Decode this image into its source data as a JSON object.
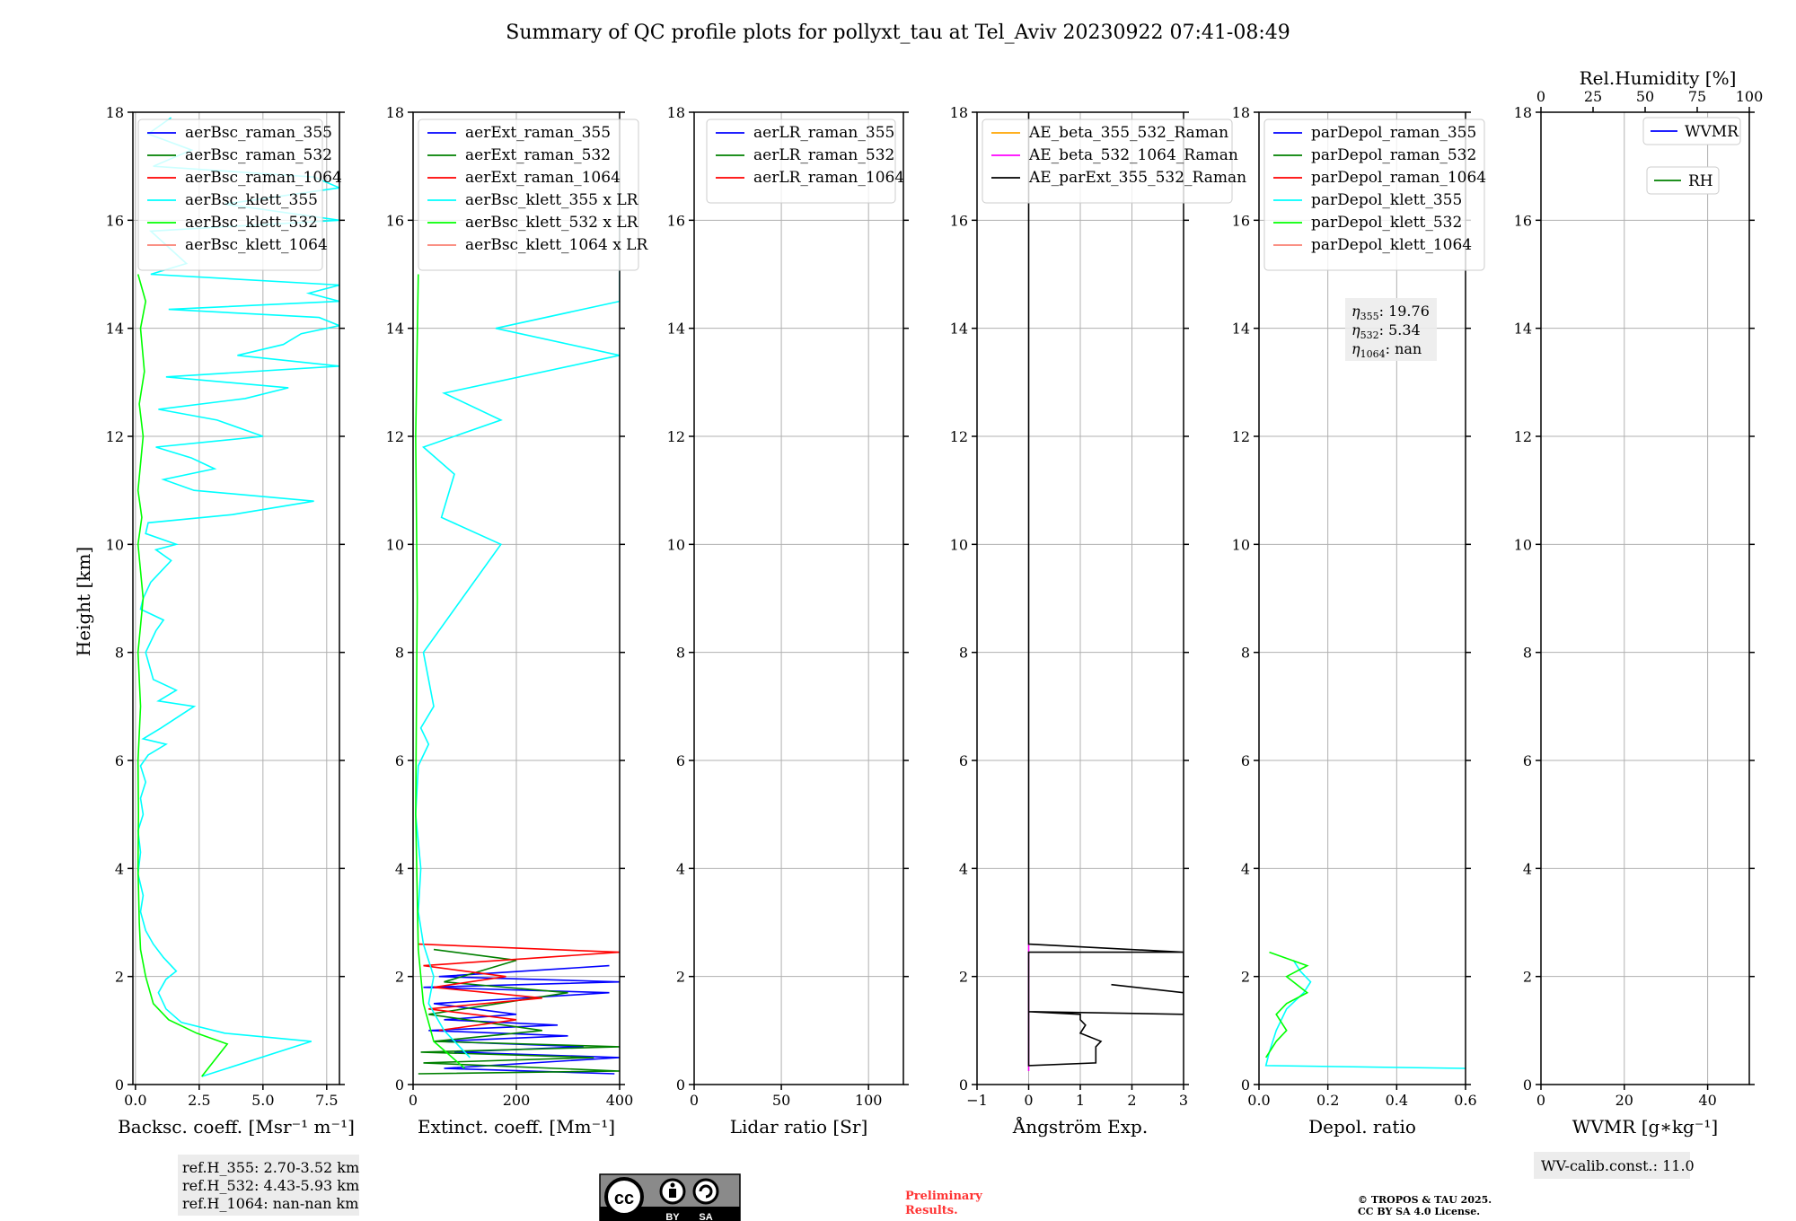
{
  "title": "Summary of QC profile plots for pollyxt_tau at Tel_Aviv 20230922 07:41-08:49",
  "y_axis": {
    "label": "Height [km]",
    "range": [
      0,
      18
    ],
    "ticks": [
      "0",
      "2",
      "4",
      "6",
      "8",
      "10",
      "12",
      "14",
      "16",
      "18"
    ]
  },
  "colors": {
    "blue": "#0000ff",
    "green": "#008000",
    "red": "#ff0000",
    "cyan": "#00ffff",
    "lime": "#00ff00",
    "salmon": "#fa8072",
    "orange": "#ffa500",
    "magenta": "#ff00ff",
    "black": "#000000"
  },
  "chart_data": [
    {
      "type": "line",
      "xlabel": "Backsc. coeff. [Msr⁻¹ m⁻¹]",
      "xlim": [
        -0.1,
        8.0
      ],
      "xticks": [
        0,
        2.5,
        5,
        7.5
      ],
      "xtick_labels": [
        "0.0",
        "2.5",
        "5.0",
        "7.5"
      ],
      "legend": [
        "aerBsc_raman_355",
        "aerBsc_raman_532",
        "aerBsc_raman_1064",
        "aerBsc_klett_355",
        "aerBsc_klett_532",
        "aerBsc_klett_1064"
      ],
      "legend_colors": [
        "blue",
        "green",
        "red",
        "cyan",
        "lime",
        "salmon"
      ],
      "series": [
        {
          "color": "cyan",
          "x": [
            2.6,
            6.9,
            3.5,
            1.8,
            1.2,
            0.9,
            1.2,
            1.6,
            1.1,
            0.7,
            0.4,
            0.2,
            0.3,
            0.1,
            0.2,
            0.1,
            0.3,
            0.2,
            0.4,
            0.2,
            0.5,
            1.2,
            0.3,
            1.0,
            2.3,
            0.9,
            1.6,
            0.7,
            0.4,
            0.8,
            1.1,
            0.2,
            0.3,
            0.6,
            1.4,
            0.8,
            1.6,
            0.4,
            0.5,
            3.8,
            7.0,
            2.3,
            1.1,
            3.1,
            2.2,
            0.8,
            5.0,
            3.2,
            0.9,
            4.3,
            6.0,
            1.2,
            8.0,
            4.0,
            5.8,
            6.5,
            8.0,
            7.2,
            1.3,
            8.0,
            6.8,
            8.0,
            0.6,
            2.0,
            0.6,
            8.0,
            3.5,
            8.0,
            7.0,
            0.7,
            2.2,
            0.5,
            1.4
          ],
          "y": [
            0.15,
            0.8,
            0.95,
            1.15,
            1.4,
            1.7,
            1.95,
            2.1,
            2.35,
            2.6,
            2.85,
            3.2,
            3.5,
            3.9,
            4.3,
            4.7,
            5.0,
            5.3,
            5.6,
            5.9,
            6.1,
            6.3,
            6.4,
            6.6,
            7.0,
            7.1,
            7.3,
            7.5,
            8.0,
            8.4,
            8.6,
            8.8,
            9.0,
            9.3,
            9.7,
            9.9,
            10.0,
            10.2,
            10.4,
            10.55,
            10.8,
            11.0,
            11.2,
            11.4,
            11.6,
            11.8,
            12.0,
            12.3,
            12.5,
            12.7,
            12.9,
            13.1,
            13.3,
            13.5,
            13.7,
            13.9,
            14.05,
            14.2,
            14.35,
            14.5,
            14.65,
            14.8,
            15.0,
            15.2,
            15.8,
            16.0,
            16.3,
            16.6,
            16.8,
            17.0,
            17.3,
            17.6,
            17.9
          ]
        },
        {
          "color": "lime",
          "x": [
            2.6,
            3.6,
            2.4,
            1.3,
            0.7,
            0.4,
            0.2,
            0.15,
            0.1,
            0.12,
            0.1,
            0.2,
            0.1,
            0.3,
            0.1,
            0.25,
            0.1,
            0.3,
            0.15,
            0.35,
            0.2,
            0.4,
            0.1
          ],
          "y": [
            0.15,
            0.75,
            0.95,
            1.2,
            1.5,
            2.0,
            2.5,
            3.0,
            4.0,
            5.0,
            6.0,
            7.0,
            8.0,
            9.0,
            10.0,
            10.5,
            11.0,
            12.0,
            12.6,
            13.2,
            14.0,
            14.5,
            15.0
          ]
        }
      ],
      "annotation": [
        "ref.H_355: 2.70-3.52 km",
        "ref.H_532: 4.43-5.93 km",
        "ref.H_1064: nan-nan km"
      ]
    },
    {
      "type": "line",
      "xlabel": "Extinct. coeff. [Mm⁻¹]",
      "xlim": [
        0,
        400
      ],
      "xticks": [
        0,
        200,
        400
      ],
      "xtick_labels": [
        "0",
        "200",
        "400"
      ],
      "legend": [
        "aerExt_raman_355",
        "aerExt_raman_532",
        "aerExt_raman_1064",
        "aerBsc_klett_355 x LR",
        "aerBsc_klett_532 x LR",
        "aerBsc_klett_1064 x LR"
      ],
      "legend_colors": [
        "blue",
        "green",
        "red",
        "cyan",
        "lime",
        "salmon"
      ],
      "series": [
        {
          "color": "blue",
          "x": [
            390,
            60,
            400,
            80,
            330,
            50,
            300,
            30,
            280,
            60,
            200,
            40,
            380,
            20,
            400,
            50,
            380
          ],
          "y": [
            0.2,
            0.3,
            0.5,
            0.6,
            0.7,
            0.8,
            0.9,
            1.0,
            1.1,
            1.2,
            1.3,
            1.5,
            1.7,
            1.8,
            1.9,
            2.0,
            2.2
          ]
        },
        {
          "color": "green",
          "x": [
            10,
            400,
            20,
            350,
            15,
            400,
            40,
            250,
            30,
            300,
            60,
            200,
            40
          ],
          "y": [
            0.2,
            0.25,
            0.4,
            0.5,
            0.6,
            0.7,
            0.8,
            1.0,
            1.3,
            1.7,
            1.9,
            2.3,
            2.5
          ]
        },
        {
          "color": "red",
          "x": [
            50,
            200,
            30,
            250,
            40,
            180,
            20,
            400,
            10
          ],
          "y": [
            1.0,
            1.2,
            1.4,
            1.6,
            1.8,
            2.0,
            2.2,
            2.45,
            2.6
          ]
        },
        {
          "color": "cyan",
          "x": [
            110,
            60,
            30,
            40,
            20,
            10,
            15,
            5,
            10,
            30,
            15,
            40,
            20,
            170,
            55,
            80,
            20,
            170,
            60,
            400,
            160,
            400,
            400,
            400
          ],
          "y": [
            0.5,
            1.0,
            1.5,
            2.0,
            2.6,
            3.2,
            4.0,
            5.0,
            5.9,
            6.3,
            6.6,
            7.0,
            8.0,
            10.0,
            10.5,
            11.3,
            11.8,
            12.3,
            12.8,
            13.5,
            14.0,
            14.5,
            16.0,
            17.2
          ]
        },
        {
          "color": "lime",
          "x": [
            100,
            40,
            20,
            10,
            5,
            8,
            5,
            10
          ],
          "y": [
            0.3,
            0.8,
            1.5,
            2.5,
            5.0,
            9.0,
            12.0,
            15.0
          ]
        }
      ]
    },
    {
      "type": "line",
      "xlabel": "Lidar ratio [Sr]",
      "xlim": [
        0,
        120
      ],
      "xticks": [
        0,
        50,
        100
      ],
      "xtick_labels": [
        "0",
        "50",
        "100"
      ],
      "legend": [
        "aerLR_raman_355",
        "aerLR_raman_532",
        "aerLR_raman_1064"
      ],
      "legend_colors": [
        "blue",
        "green",
        "red"
      ],
      "series": []
    },
    {
      "type": "line",
      "xlabel": "Ångström Exp.",
      "xlim": [
        -1,
        3
      ],
      "xticks": [
        -1,
        0,
        1,
        2,
        3
      ],
      "xtick_labels": [
        "−1",
        "0",
        "1",
        "2",
        "3"
      ],
      "legend": [
        "AE_beta_355_532_Raman",
        "AE_beta_532_1064_Raman",
        "AE_parExt_355_532_Raman"
      ],
      "legend_colors": [
        "orange",
        "magenta",
        "black"
      ],
      "series": [
        {
          "color": "magenta",
          "x": [
            0,
            0
          ],
          "y": [
            0.25,
            2.6
          ]
        },
        {
          "color": "black",
          "x": [
            0,
            0,
            3,
            3,
            0,
            0,
            1.3,
            1.3,
            1.3,
            1.4,
            1.0,
            1.1,
            1.0,
            1.0,
            0,
            0,
            3,
            3,
            1.6,
            3,
            3,
            0,
            0
          ],
          "y": [
            18,
            2.6,
            2.45,
            2.45,
            2.45,
            0.35,
            0.4,
            0.6,
            0.7,
            0.8,
            0.95,
            1.1,
            1.2,
            1.3,
            1.35,
            1.35,
            1.3,
            1.7,
            1.85,
            1.7,
            2.45,
            2.6,
            17.5
          ]
        }
      ]
    },
    {
      "type": "line",
      "xlabel": "Depol. ratio",
      "xlim": [
        0,
        0.6
      ],
      "xticks": [
        0,
        0.2,
        0.4,
        0.6
      ],
      "xtick_labels": [
        "0.0",
        "0.2",
        "0.4",
        "0.6"
      ],
      "legend": [
        "parDepol_raman_355",
        "parDepol_raman_532",
        "parDepol_raman_1064",
        "parDepol_klett_355",
        "parDepol_klett_532",
        "parDepol_klett_1064"
      ],
      "legend_colors": [
        "blue",
        "green",
        "red",
        "cyan",
        "lime",
        "salmon"
      ],
      "series": [
        {
          "color": "cyan",
          "x": [
            0.6,
            0.02,
            0.03,
            0.05,
            0.08,
            0.13,
            0.15,
            0.12,
            0.1
          ],
          "y": [
            0.3,
            0.35,
            0.6,
            1.0,
            1.4,
            1.7,
            1.9,
            2.1,
            2.3
          ]
        },
        {
          "color": "lime",
          "x": [
            0.02,
            0.05,
            0.08,
            0.05,
            0.08,
            0.14,
            0.08,
            0.14,
            0.03
          ],
          "y": [
            0.5,
            0.8,
            1.0,
            1.3,
            1.5,
            1.7,
            2.0,
            2.2,
            2.45
          ]
        }
      ],
      "eta": [
        "19.76",
        "5.34",
        "nan"
      ]
    },
    {
      "type": "line",
      "xlabel": "WVMR",
      "xlabel_unit": "g∗kg⁻¹",
      "xlim": [
        0,
        50
      ],
      "xticks": [
        0,
        20,
        40
      ],
      "xtick_labels": [
        "0",
        "20",
        "40"
      ],
      "top_axis": {
        "label": "Rel.Humidity [%]",
        "xlim": [
          0,
          100
        ],
        "ticks": [
          "0",
          "25",
          "50",
          "75",
          "100"
        ]
      },
      "legend": [
        "WVMR",
        "RH"
      ],
      "legend_colors": [
        "blue",
        "green"
      ],
      "series": [],
      "annotation": "WV-calib.const.: 11.0"
    }
  ],
  "footer": {
    "cc_by": "BY",
    "cc_sa": "SA",
    "preliminary_line1": "Preliminary",
    "preliminary_line2": "Results.",
    "copyright_line1": "© TROPOS & TAU 2025.",
    "copyright_line2": "CC BY SA 4.0 License."
  }
}
